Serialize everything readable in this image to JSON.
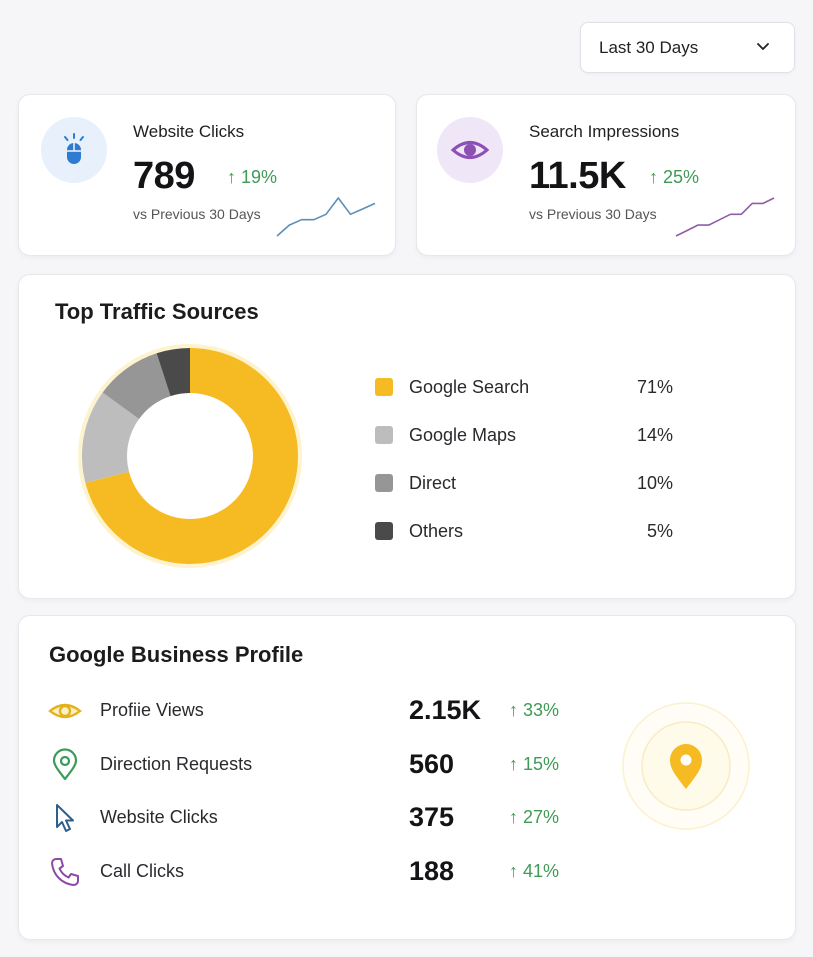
{
  "range_select": {
    "value": "Last 30 Days",
    "icon": "chevron-down-icon"
  },
  "kpis": [
    {
      "title": "Website Clicks",
      "value": "789",
      "delta": "↑ 19%",
      "subtitle": "vs Previous 30 Days",
      "icon": "mouse-icon",
      "accent": "#2f7bd1",
      "spark_color": "#5b8fb8",
      "spark": [
        2,
        4,
        5,
        5,
        6,
        9,
        6,
        7,
        8
      ]
    },
    {
      "title": "Search Impressions",
      "value": "11.5K",
      "delta": "↑ 25%",
      "subtitle": "vs Previous 30 Days",
      "icon": "eye-icon",
      "accent": "#8e4fb5",
      "spark_color": "#8e5ea8",
      "spark": [
        2,
        3,
        4,
        4,
        5,
        6,
        6,
        8,
        8,
        9
      ]
    }
  ],
  "traffic": {
    "title": "Top Traffic Sources",
    "chart_data": {
      "type": "pie",
      "categories": [
        "Google Search",
        "Google Maps",
        "Direct",
        "Others"
      ],
      "values": [
        71,
        14,
        10,
        5
      ],
      "labels": [
        "71%",
        "14%",
        "10%",
        "5%"
      ],
      "colors": [
        "#f6bb23",
        "#bdbdbd",
        "#969696",
        "#4a4a4a"
      ]
    }
  },
  "gbp": {
    "title": "Google Business Profile",
    "rows": [
      {
        "label": "Profiie Views",
        "value": "2.15K",
        "delta": "↑ 33%",
        "icon": "eye-icon",
        "color": "#e3b21a"
      },
      {
        "label": "Direction Requests",
        "value": "560",
        "delta": "↑ 15%",
        "icon": "location-pin-icon",
        "color": "#3c9a5a"
      },
      {
        "label": "Website Clicks",
        "value": "375",
        "delta": "↑ 27%",
        "icon": "cursor-icon",
        "color": "#2d5f8a"
      },
      {
        "label": "Call Clicks",
        "value": "188",
        "delta": "↑ 41%",
        "icon": "phone-icon",
        "color": "#8a4aa6"
      }
    ],
    "map_pin_color": "#f6bb23"
  }
}
